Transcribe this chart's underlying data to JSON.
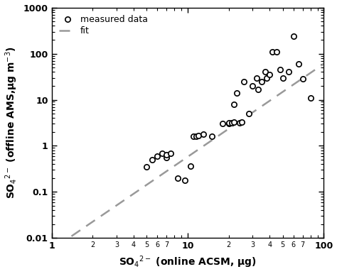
{
  "scatter_x": [
    5.0,
    5.5,
    6.0,
    6.5,
    7.0,
    7.0,
    7.5,
    8.5,
    9.5,
    10.5,
    11.0,
    11.5,
    12.0,
    13.0,
    15.0,
    18.0,
    20.0,
    20.0,
    21.0,
    22.0,
    22.0,
    23.0,
    24.0,
    25.0,
    26.0,
    28.0,
    30.0,
    32.0,
    33.0,
    35.0,
    37.0,
    38.0,
    40.0,
    42.0,
    45.0,
    48.0,
    50.0,
    55.0,
    60.0,
    65.0,
    70.0,
    80.0
  ],
  "scatter_y": [
    0.35,
    0.5,
    0.6,
    0.7,
    0.55,
    0.65,
    0.7,
    0.2,
    0.18,
    0.37,
    1.6,
    1.6,
    1.7,
    1.8,
    1.6,
    3.0,
    3.0,
    3.2,
    3.2,
    3.3,
    8.0,
    14.0,
    3.2,
    3.3,
    25.0,
    5.0,
    20.0,
    30.0,
    17.0,
    25.0,
    40.0,
    30.0,
    35.0,
    110.0,
    110.0,
    45.0,
    30.0,
    40.0,
    240.0,
    60.0,
    28.0,
    11.0
  ],
  "fit_x": [
    1.4,
    100.0
  ],
  "fit_y": [
    0.011,
    60.0
  ],
  "xlim": [
    1.0,
    100.0
  ],
  "ylim": [
    0.01,
    1000.0
  ],
  "xlabel": "SO$_4$$^{2-}$ (online ACSM, μg)",
  "ylabel": "SO$_4$$^{2-}$ (offline AMS,μg m$^{-3}$)",
  "legend_measured": "measured data",
  "legend_fit": "fit",
  "marker_facecolor": "white",
  "marker_edgecolor": "black",
  "fit_color": "#999999",
  "background_color": "#ffffff",
  "marker_size": 28,
  "marker_linewidth": 1.2,
  "fit_linewidth": 1.8,
  "major_label_fontsize": 9,
  "minor_label_fontsize": 7,
  "axis_label_fontsize": 10,
  "legend_fontsize": 9
}
